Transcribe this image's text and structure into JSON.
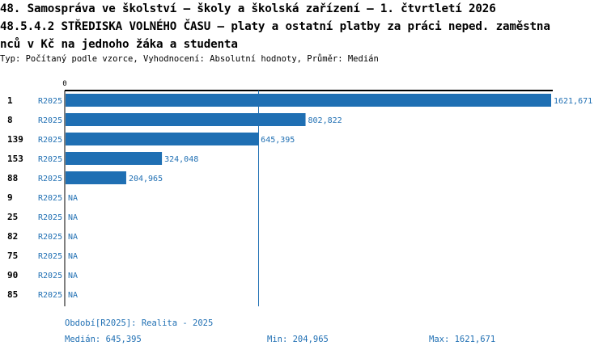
{
  "header": {
    "title": "48. Samospráva ve školství – školy a školská zařízení – 1. čtvrtletí 2026\n48.5.4.2 STŘEDISKA VOLNÉHO ČASU – platy a ostatní platby za práci neped. zaměstna\nnců v Kč na jednoho žáka a studenta",
    "subtitle": "Typ: Počítaný podle vzorce, Vyhodnocení: Absolutní hodnoty, Průměr: Medián"
  },
  "chart_data": {
    "type": "bar",
    "orientation": "horizontal",
    "title": "48.5.4.2 STŘEDISKA VOLNÉHO ČASU – platy a ostatní platby za práci neped. zaměstnanců v Kč na jednoho žáka a studenta",
    "axis_zero_label": "0",
    "xlim": [
      0,
      1621.671
    ],
    "series_label": "R2025",
    "categories": [
      "1",
      "8",
      "139",
      "153",
      "88",
      "9",
      "25",
      "82",
      "75",
      "90",
      "85"
    ],
    "values": [
      1621.671,
      802.822,
      645.395,
      324.048,
      204.965,
      null,
      null,
      null,
      null,
      null,
      null
    ],
    "value_labels": [
      "1621,671",
      "802,822",
      "645,395",
      "324,048",
      "204,965",
      "NA",
      "NA",
      "NA",
      "NA",
      "NA",
      "NA"
    ],
    "median": 645.395,
    "colors": {
      "bar": "#1f6fb3",
      "text": "#1f6fb3",
      "label": "#000000",
      "axis": "#000000",
      "median_line": "#1f6fb3"
    }
  },
  "footer": {
    "period": "Období[R2025]: Realita - 2025",
    "median": "Medián: 645,395",
    "min": "Min: 204,965",
    "max": "Max: 1621,671"
  }
}
